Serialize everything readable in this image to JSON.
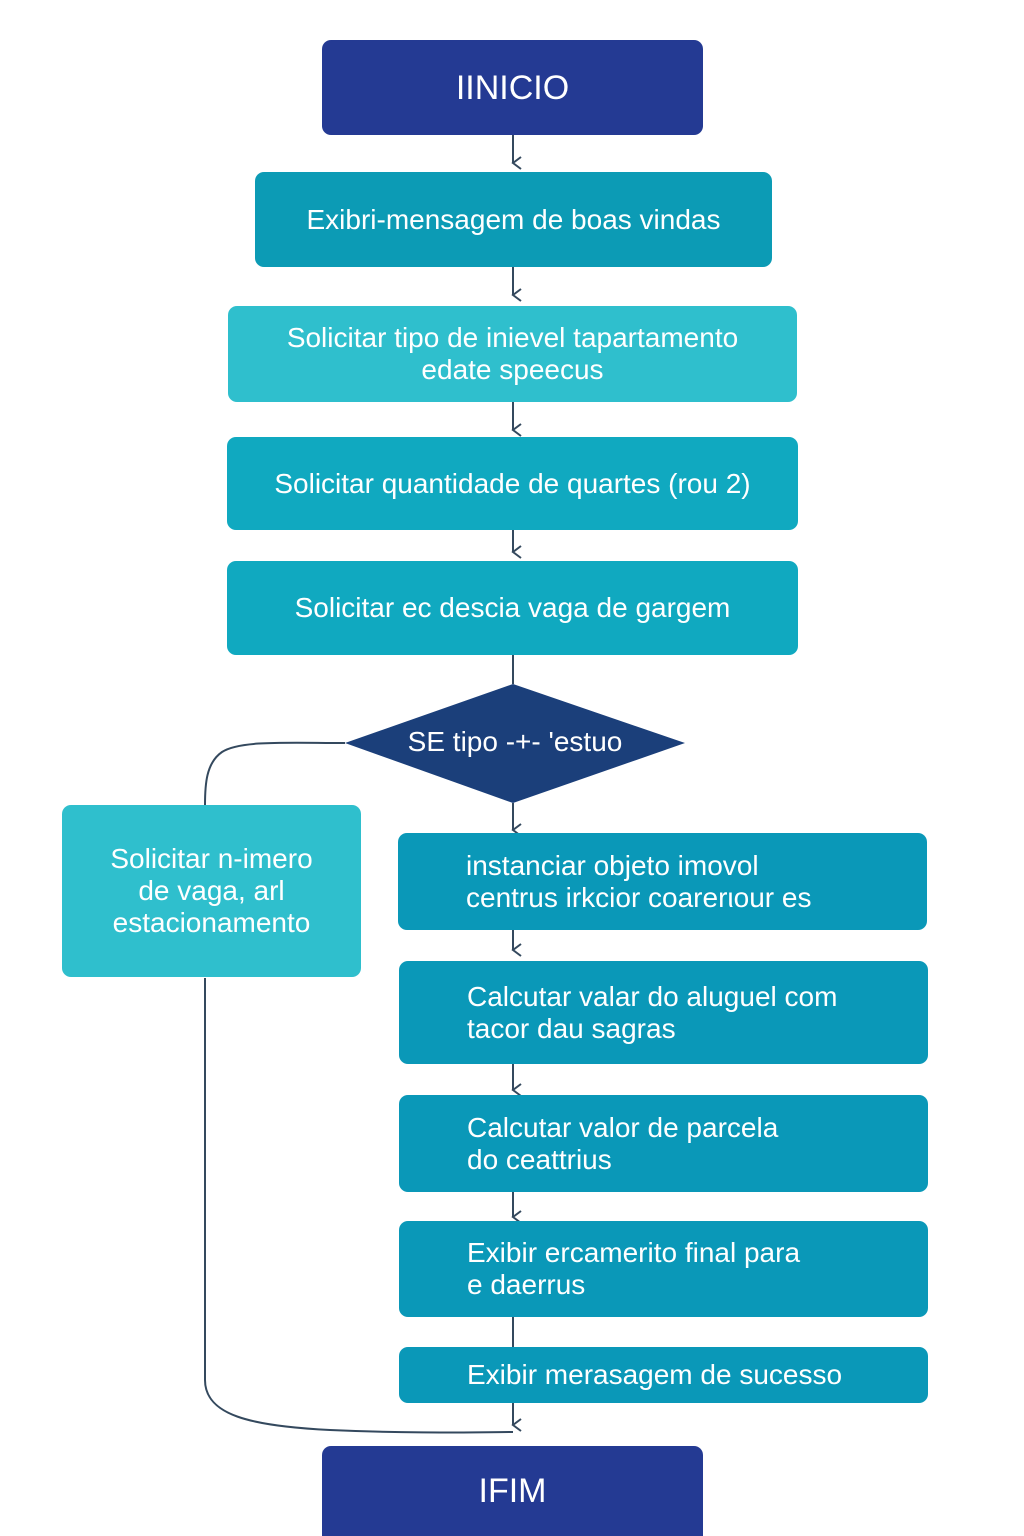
{
  "colors": {
    "terminal": "#243a93",
    "step_dark": "#0c9bb5",
    "step_light": "#2fbfcd",
    "decision": "#1b3f7a",
    "connector": "#34495e"
  },
  "flow": {
    "start": "IINICIO",
    "step_welcome": "Exibri-mensagem de boas vindas",
    "step_type": {
      "line1": "Solicitar tipo de inievel tapartamento",
      "line2": "edate speecus"
    },
    "step_rooms": "Solicitar quantidade de quartes (rou 2)",
    "step_garage": "Solicitar ec descia vaga de gargem",
    "decision": "SE tipo -+- 'estuo",
    "side_branch": {
      "line1": "Solicitar n-imero",
      "line2": "de vaga, arl",
      "line3": "estacionamento"
    },
    "step_instance": {
      "line1": "instanciar  objeto  imovol",
      "line2": "centrus irkcior coarerιour es"
    },
    "step_rent": {
      "line1": "Calcutar valar do aluguel com",
      "line2": "tacor dau sagras"
    },
    "step_installment": {
      "line1": "Calcutar valor de parcela",
      "line2": "do ceattrius"
    },
    "step_budget": {
      "line1": "Exibir ercamerito final para",
      "line2": "e daerrus"
    },
    "step_success": "Exibir merasagem de sucesso",
    "end": "IFIM"
  }
}
